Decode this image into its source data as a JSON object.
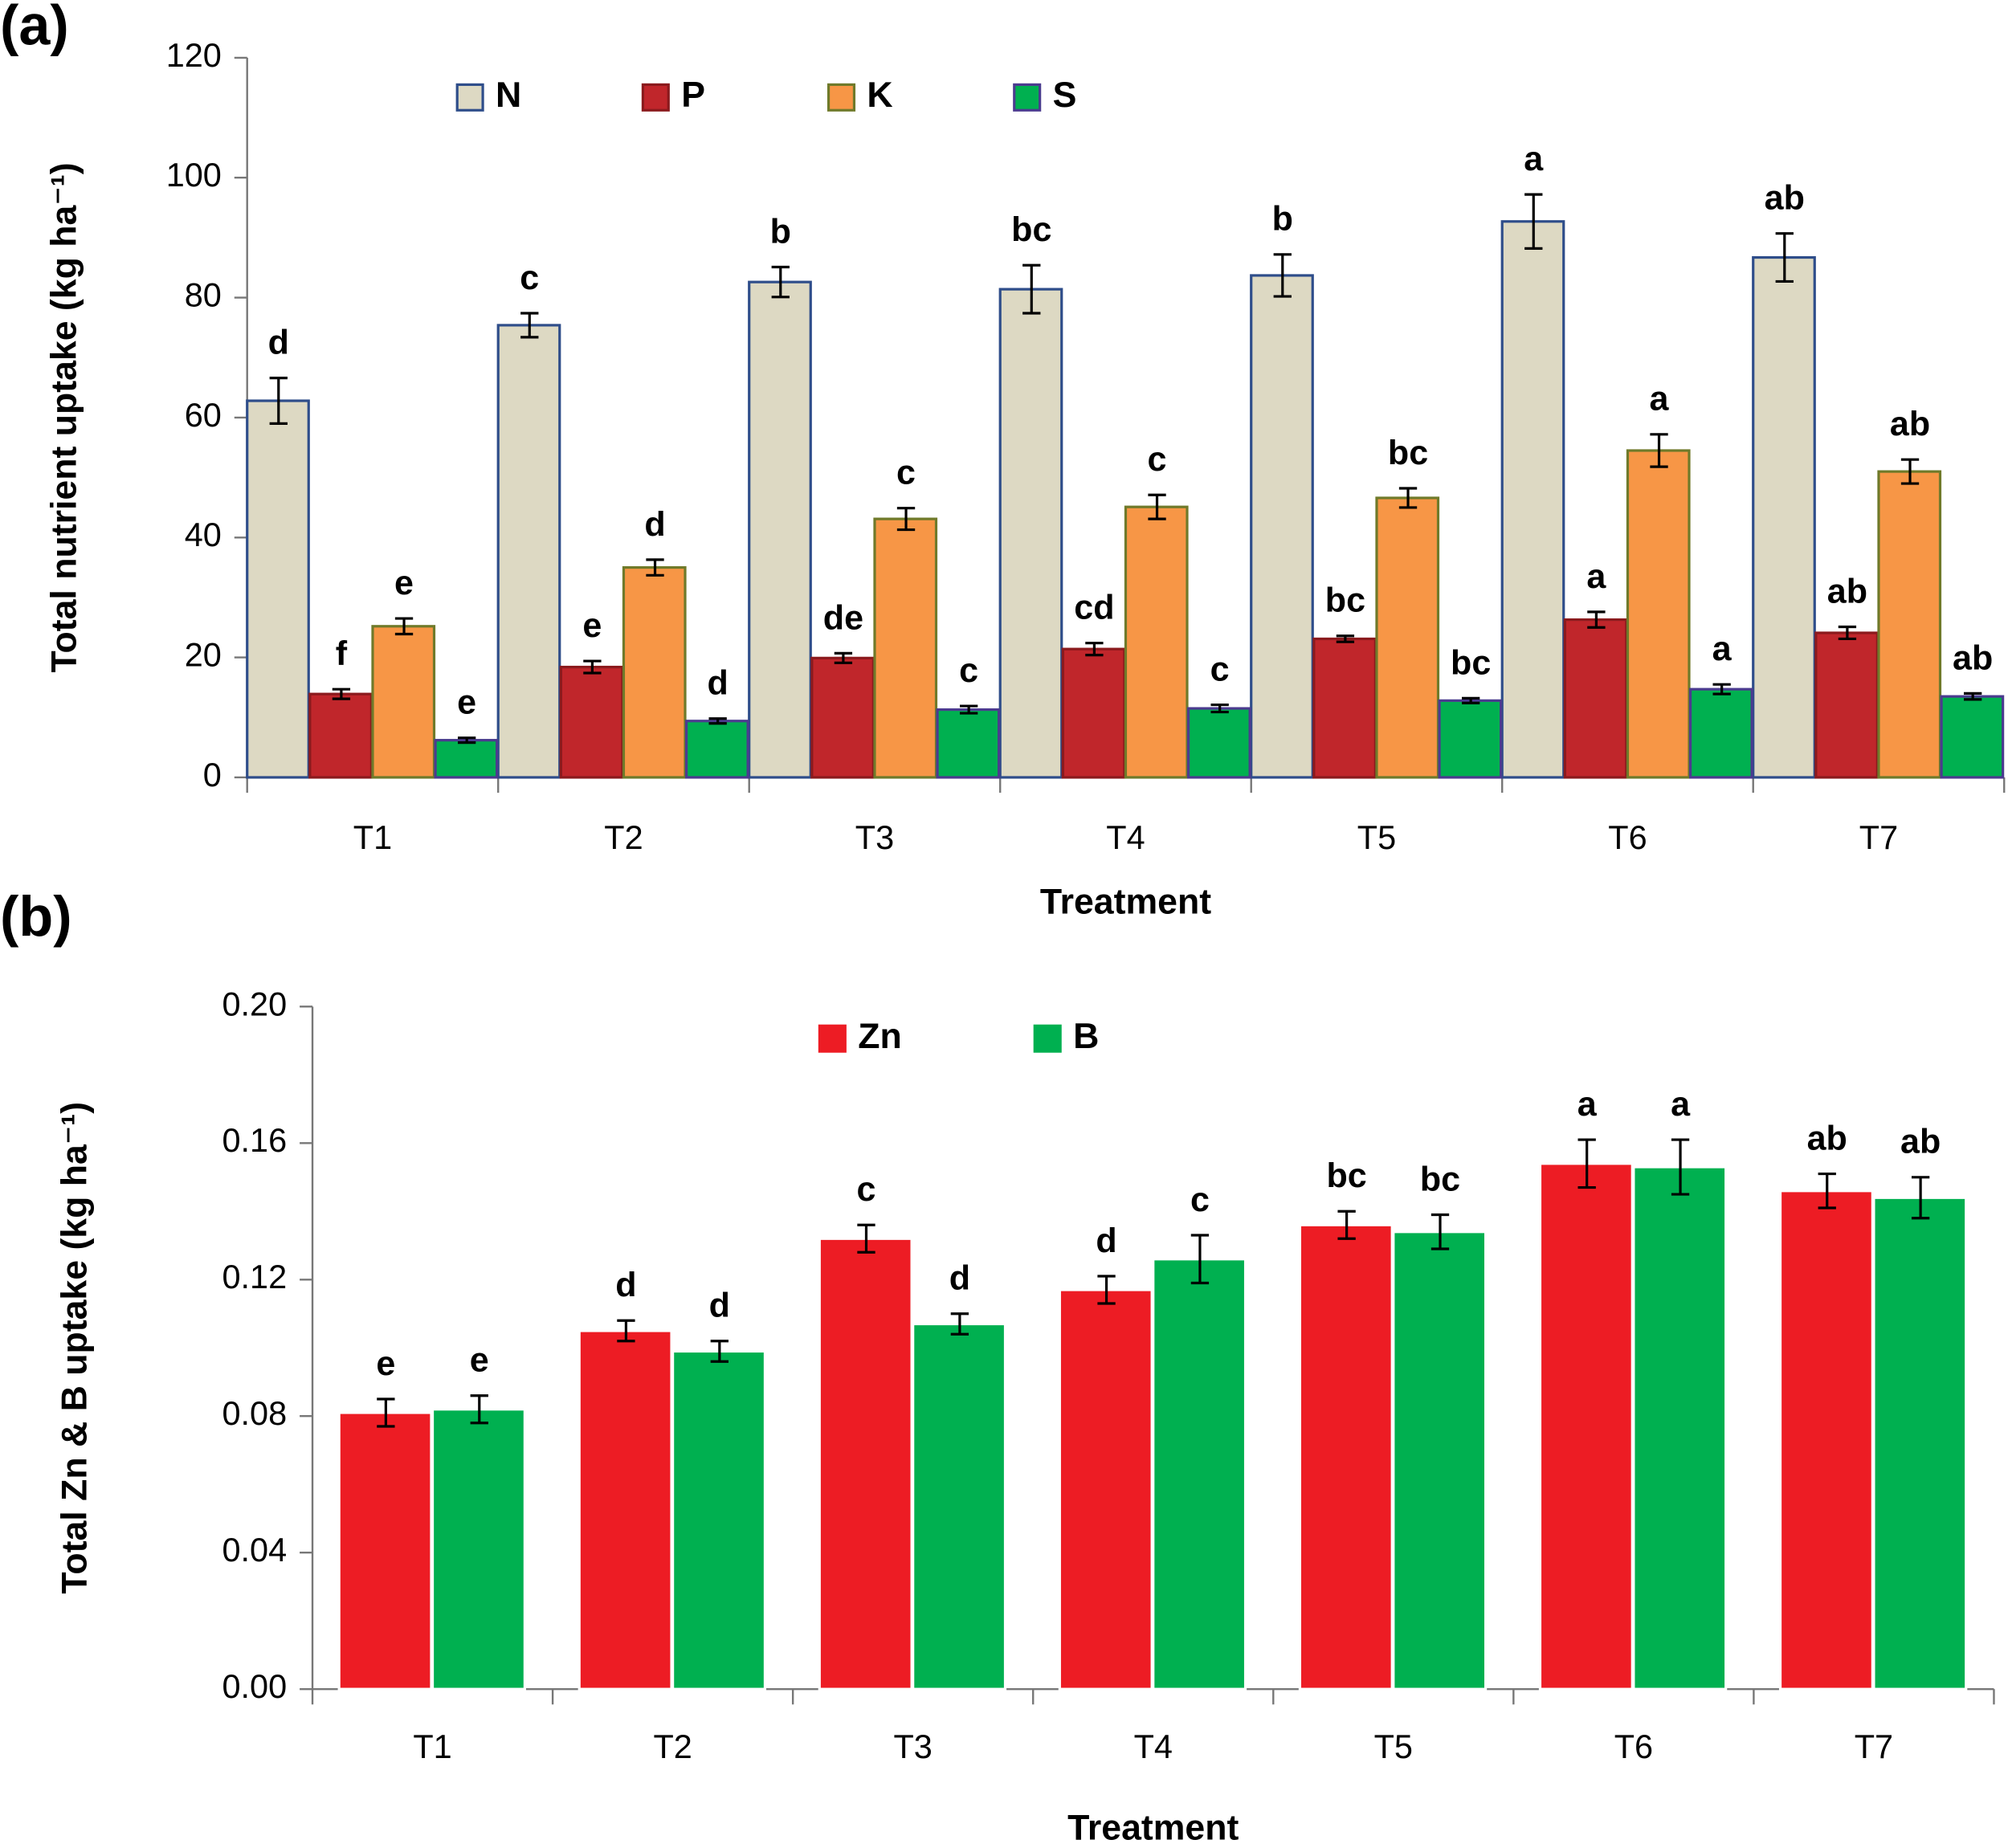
{
  "chart_data": [
    {
      "type": "bar",
      "panel_label": "(a)",
      "y_label": "Total nutrient uptake (kg ha⁻¹)",
      "x_label": "Treatment",
      "categories": [
        "T1",
        "T2",
        "T3",
        "T4",
        "T5",
        "T6",
        "T7"
      ],
      "series": [
        {
          "name": "N",
          "color": "#ddd9c3",
          "edge": "#2e4d8a",
          "values": [
            62.8,
            75.4,
            82.6,
            81.4,
            83.7,
            92.7,
            86.7
          ],
          "errors": [
            3.8,
            2,
            2.5,
            4,
            3.5,
            4.5,
            4
          ],
          "letters": [
            "d",
            "c",
            "b",
            "bc",
            "b",
            "a",
            "ab"
          ]
        },
        {
          "name": "P",
          "color": "#c0262b",
          "edge": "#8b1a1d",
          "values": [
            13.9,
            18.4,
            19.9,
            21.4,
            23.1,
            26.3,
            24.1
          ],
          "errors": [
            0.8,
            1,
            0.8,
            1,
            0.5,
            1.3,
            1
          ],
          "letters": [
            "f",
            "e",
            "de",
            "cd",
            "bc",
            "a",
            "ab"
          ]
        },
        {
          "name": "K",
          "color": "#f79646",
          "edge": "#6f7a2a",
          "values": [
            25.2,
            35.0,
            43.1,
            45.1,
            46.6,
            54.5,
            51.0
          ],
          "errors": [
            1.3,
            1.3,
            1.8,
            2,
            1.6,
            2.7,
            2
          ],
          "letters": [
            "e",
            "d",
            "c",
            "c",
            "bc",
            "a",
            "ab"
          ]
        },
        {
          "name": "S",
          "color": "#00b050",
          "edge": "#4b3b8f",
          "values": [
            6.2,
            9.4,
            11.3,
            11.5,
            12.8,
            14.7,
            13.5
          ],
          "errors": [
            0.4,
            0.4,
            0.6,
            0.6,
            0.4,
            0.8,
            0.5
          ],
          "letters": [
            "e",
            "d",
            "c",
            "c",
            "bc",
            "a",
            "ab"
          ]
        }
      ],
      "ylim": [
        0,
        120
      ],
      "yticks": [
        0,
        20,
        40,
        60,
        80,
        100,
        120
      ]
    },
    {
      "type": "bar",
      "panel_label": "(b)",
      "y_label": "Total Zn & B uptake (kg ha⁻¹)",
      "x_label": "Treatment",
      "categories": [
        "T1",
        "T2",
        "T3",
        "T4",
        "T5",
        "T6",
        "T7"
      ],
      "series": [
        {
          "name": "Zn",
          "color": "#ed1c24",
          "edge": "#ffffff",
          "values": [
            0.081,
            0.105,
            0.132,
            0.117,
            0.136,
            0.154,
            0.146
          ],
          "errors": [
            0.004,
            0.003,
            0.004,
            0.004,
            0.004,
            0.007,
            0.005
          ],
          "letters": [
            "e",
            "d",
            "c",
            "d",
            "bc",
            "a",
            "ab"
          ]
        },
        {
          "name": "B",
          "color": "#00b050",
          "edge": "#ffffff",
          "values": [
            0.082,
            0.099,
            0.107,
            0.126,
            0.134,
            0.153,
            0.144
          ],
          "errors": [
            0.004,
            0.003,
            0.003,
            0.007,
            0.005,
            0.008,
            0.006
          ],
          "letters": [
            "e",
            "d",
            "d",
            "c",
            "bc",
            "a",
            "ab"
          ]
        }
      ],
      "ylim": [
        0,
        0.2
      ],
      "yticks": [
        {
          "value": 0,
          "label": "0.00"
        },
        0.04,
        0.08,
        0.12,
        0.16,
        {
          "value": 0.2,
          "label": "0.20"
        }
      ]
    }
  ]
}
